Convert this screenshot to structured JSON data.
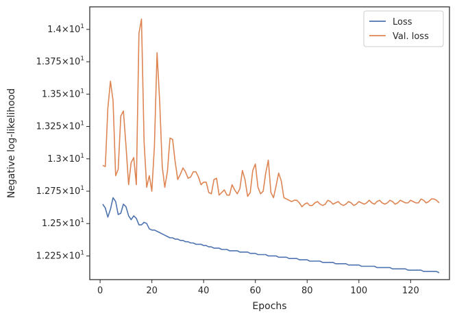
{
  "chart_data": {
    "type": "line",
    "xlabel": "Epochs",
    "ylabel": "Negative log-likelihood",
    "xlim": [
      -4,
      135
    ],
    "ylim": [
      12.067,
      14.174
    ],
    "x_ticks": [
      0,
      20,
      40,
      60,
      80,
      100,
      120
    ],
    "y_ticks": [
      {
        "value": 12.25,
        "mantissa": "1.225"
      },
      {
        "value": 12.5,
        "mantissa": "1.25"
      },
      {
        "value": 12.75,
        "mantissa": "1.275"
      },
      {
        "value": 13.0,
        "mantissa": "1.3"
      },
      {
        "value": 13.25,
        "mantissa": "1.325"
      },
      {
        "value": 13.5,
        "mantissa": "1.35"
      },
      {
        "value": 13.75,
        "mantissa": "1.375"
      },
      {
        "value": 14.0,
        "mantissa": "1.4"
      }
    ],
    "y_tick_times": "×10",
    "y_tick_exponent": "1",
    "grid": false,
    "legend": "top-right",
    "series": [
      {
        "name": "Loss",
        "color": "#4c72b0",
        "x": [
          1,
          2,
          3,
          4,
          5,
          6,
          7,
          8,
          9,
          10,
          11,
          12,
          13,
          14,
          15,
          16,
          17,
          18,
          19,
          20,
          21,
          22,
          23,
          24,
          25,
          26,
          27,
          28,
          29,
          30,
          31,
          32,
          33,
          34,
          35,
          36,
          37,
          38,
          39,
          40,
          41,
          42,
          43,
          44,
          45,
          46,
          47,
          48,
          49,
          50,
          51,
          52,
          53,
          54,
          55,
          56,
          57,
          58,
          59,
          60,
          61,
          62,
          63,
          64,
          65,
          66,
          67,
          68,
          69,
          70,
          71,
          72,
          73,
          74,
          75,
          76,
          77,
          78,
          79,
          80,
          81,
          82,
          83,
          84,
          85,
          86,
          87,
          88,
          89,
          90,
          91,
          92,
          93,
          94,
          95,
          96,
          97,
          98,
          99,
          100,
          101,
          102,
          103,
          104,
          105,
          106,
          107,
          108,
          109,
          110,
          111,
          112,
          113,
          114,
          115,
          116,
          117,
          118,
          119,
          120,
          121,
          122,
          123,
          124,
          125,
          126,
          127,
          128,
          129,
          130,
          131
        ],
        "y": [
          12.65,
          12.62,
          12.55,
          12.61,
          12.7,
          12.67,
          12.57,
          12.58,
          12.65,
          12.63,
          12.56,
          12.53,
          12.56,
          12.54,
          12.49,
          12.49,
          12.51,
          12.5,
          12.46,
          12.45,
          12.45,
          12.44,
          12.43,
          12.42,
          12.41,
          12.4,
          12.39,
          12.39,
          12.38,
          12.38,
          12.37,
          12.37,
          12.36,
          12.36,
          12.35,
          12.35,
          12.34,
          12.34,
          12.34,
          12.33,
          12.33,
          12.32,
          12.32,
          12.31,
          12.31,
          12.31,
          12.3,
          12.3,
          12.3,
          12.29,
          12.29,
          12.29,
          12.29,
          12.28,
          12.28,
          12.28,
          12.28,
          12.27,
          12.27,
          12.27,
          12.26,
          12.26,
          12.26,
          12.26,
          12.25,
          12.25,
          12.25,
          12.25,
          12.24,
          12.24,
          12.24,
          12.24,
          12.23,
          12.23,
          12.23,
          12.23,
          12.22,
          12.22,
          12.22,
          12.22,
          12.21,
          12.21,
          12.21,
          12.21,
          12.21,
          12.2,
          12.2,
          12.2,
          12.2,
          12.2,
          12.19,
          12.19,
          12.19,
          12.19,
          12.19,
          12.18,
          12.18,
          12.18,
          12.18,
          12.18,
          12.17,
          12.17,
          12.17,
          12.17,
          12.17,
          12.17,
          12.16,
          12.16,
          12.16,
          12.16,
          12.16,
          12.16,
          12.15,
          12.15,
          12.15,
          12.15,
          12.15,
          12.15,
          12.14,
          12.14,
          12.14,
          12.14,
          12.14,
          12.14,
          12.13,
          12.13,
          12.13,
          12.13,
          12.13,
          12.13,
          12.12
        ]
      },
      {
        "name": "Val. loss",
        "color": "#dd8452",
        "x": [
          1,
          2,
          3,
          4,
          5,
          6,
          7,
          8,
          9,
          10,
          11,
          12,
          13,
          14,
          15,
          16,
          17,
          18,
          19,
          20,
          21,
          22,
          23,
          24,
          25,
          26,
          27,
          28,
          29,
          30,
          31,
          32,
          33,
          34,
          35,
          36,
          37,
          38,
          39,
          40,
          41,
          42,
          43,
          44,
          45,
          46,
          47,
          48,
          49,
          50,
          51,
          52,
          53,
          54,
          55,
          56,
          57,
          58,
          59,
          60,
          61,
          62,
          63,
          64,
          65,
          66,
          67,
          68,
          69,
          70,
          71,
          72,
          73,
          74,
          75,
          76,
          77,
          78,
          79,
          80,
          81,
          82,
          83,
          84,
          85,
          86,
          87,
          88,
          89,
          90,
          91,
          92,
          93,
          94,
          95,
          96,
          97,
          98,
          99,
          100,
          101,
          102,
          103,
          104,
          105,
          106,
          107,
          108,
          109,
          110,
          111,
          112,
          113,
          114,
          115,
          116,
          117,
          118,
          119,
          120,
          121,
          122,
          123,
          124,
          125,
          126,
          127,
          128,
          129,
          130,
          131
        ],
        "y": [
          12.95,
          12.94,
          13.39,
          13.6,
          13.45,
          12.87,
          12.92,
          13.33,
          13.37,
          13.1,
          12.8,
          12.97,
          13.01,
          12.8,
          13.97,
          14.08,
          13.13,
          12.78,
          12.87,
          12.75,
          13.1,
          13.82,
          13.45,
          12.94,
          12.78,
          12.9,
          13.16,
          13.15,
          12.98,
          12.84,
          12.88,
          12.93,
          12.9,
          12.85,
          12.86,
          12.9,
          12.9,
          12.86,
          12.8,
          12.82,
          12.82,
          12.74,
          12.73,
          12.84,
          12.85,
          12.72,
          12.74,
          12.76,
          12.72,
          12.72,
          12.8,
          12.76,
          12.73,
          12.77,
          12.91,
          12.84,
          12.71,
          12.74,
          12.91,
          12.96,
          12.78,
          12.73,
          12.75,
          12.89,
          12.99,
          12.74,
          12.7,
          12.79,
          12.89,
          12.83,
          12.7,
          12.69,
          12.68,
          12.67,
          12.68,
          12.68,
          12.66,
          12.63,
          12.65,
          12.66,
          12.64,
          12.64,
          12.66,
          12.67,
          12.65,
          12.64,
          12.65,
          12.68,
          12.67,
          12.65,
          12.66,
          12.67,
          12.65,
          12.64,
          12.65,
          12.67,
          12.66,
          12.64,
          12.65,
          12.67,
          12.66,
          12.65,
          12.66,
          12.68,
          12.66,
          12.65,
          12.67,
          12.68,
          12.66,
          12.65,
          12.66,
          12.68,
          12.67,
          12.65,
          12.66,
          12.68,
          12.67,
          12.66,
          12.66,
          12.68,
          12.67,
          12.66,
          12.66,
          12.69,
          12.68,
          12.66,
          12.67,
          12.69,
          12.69,
          12.68,
          12.66
        ]
      }
    ]
  }
}
